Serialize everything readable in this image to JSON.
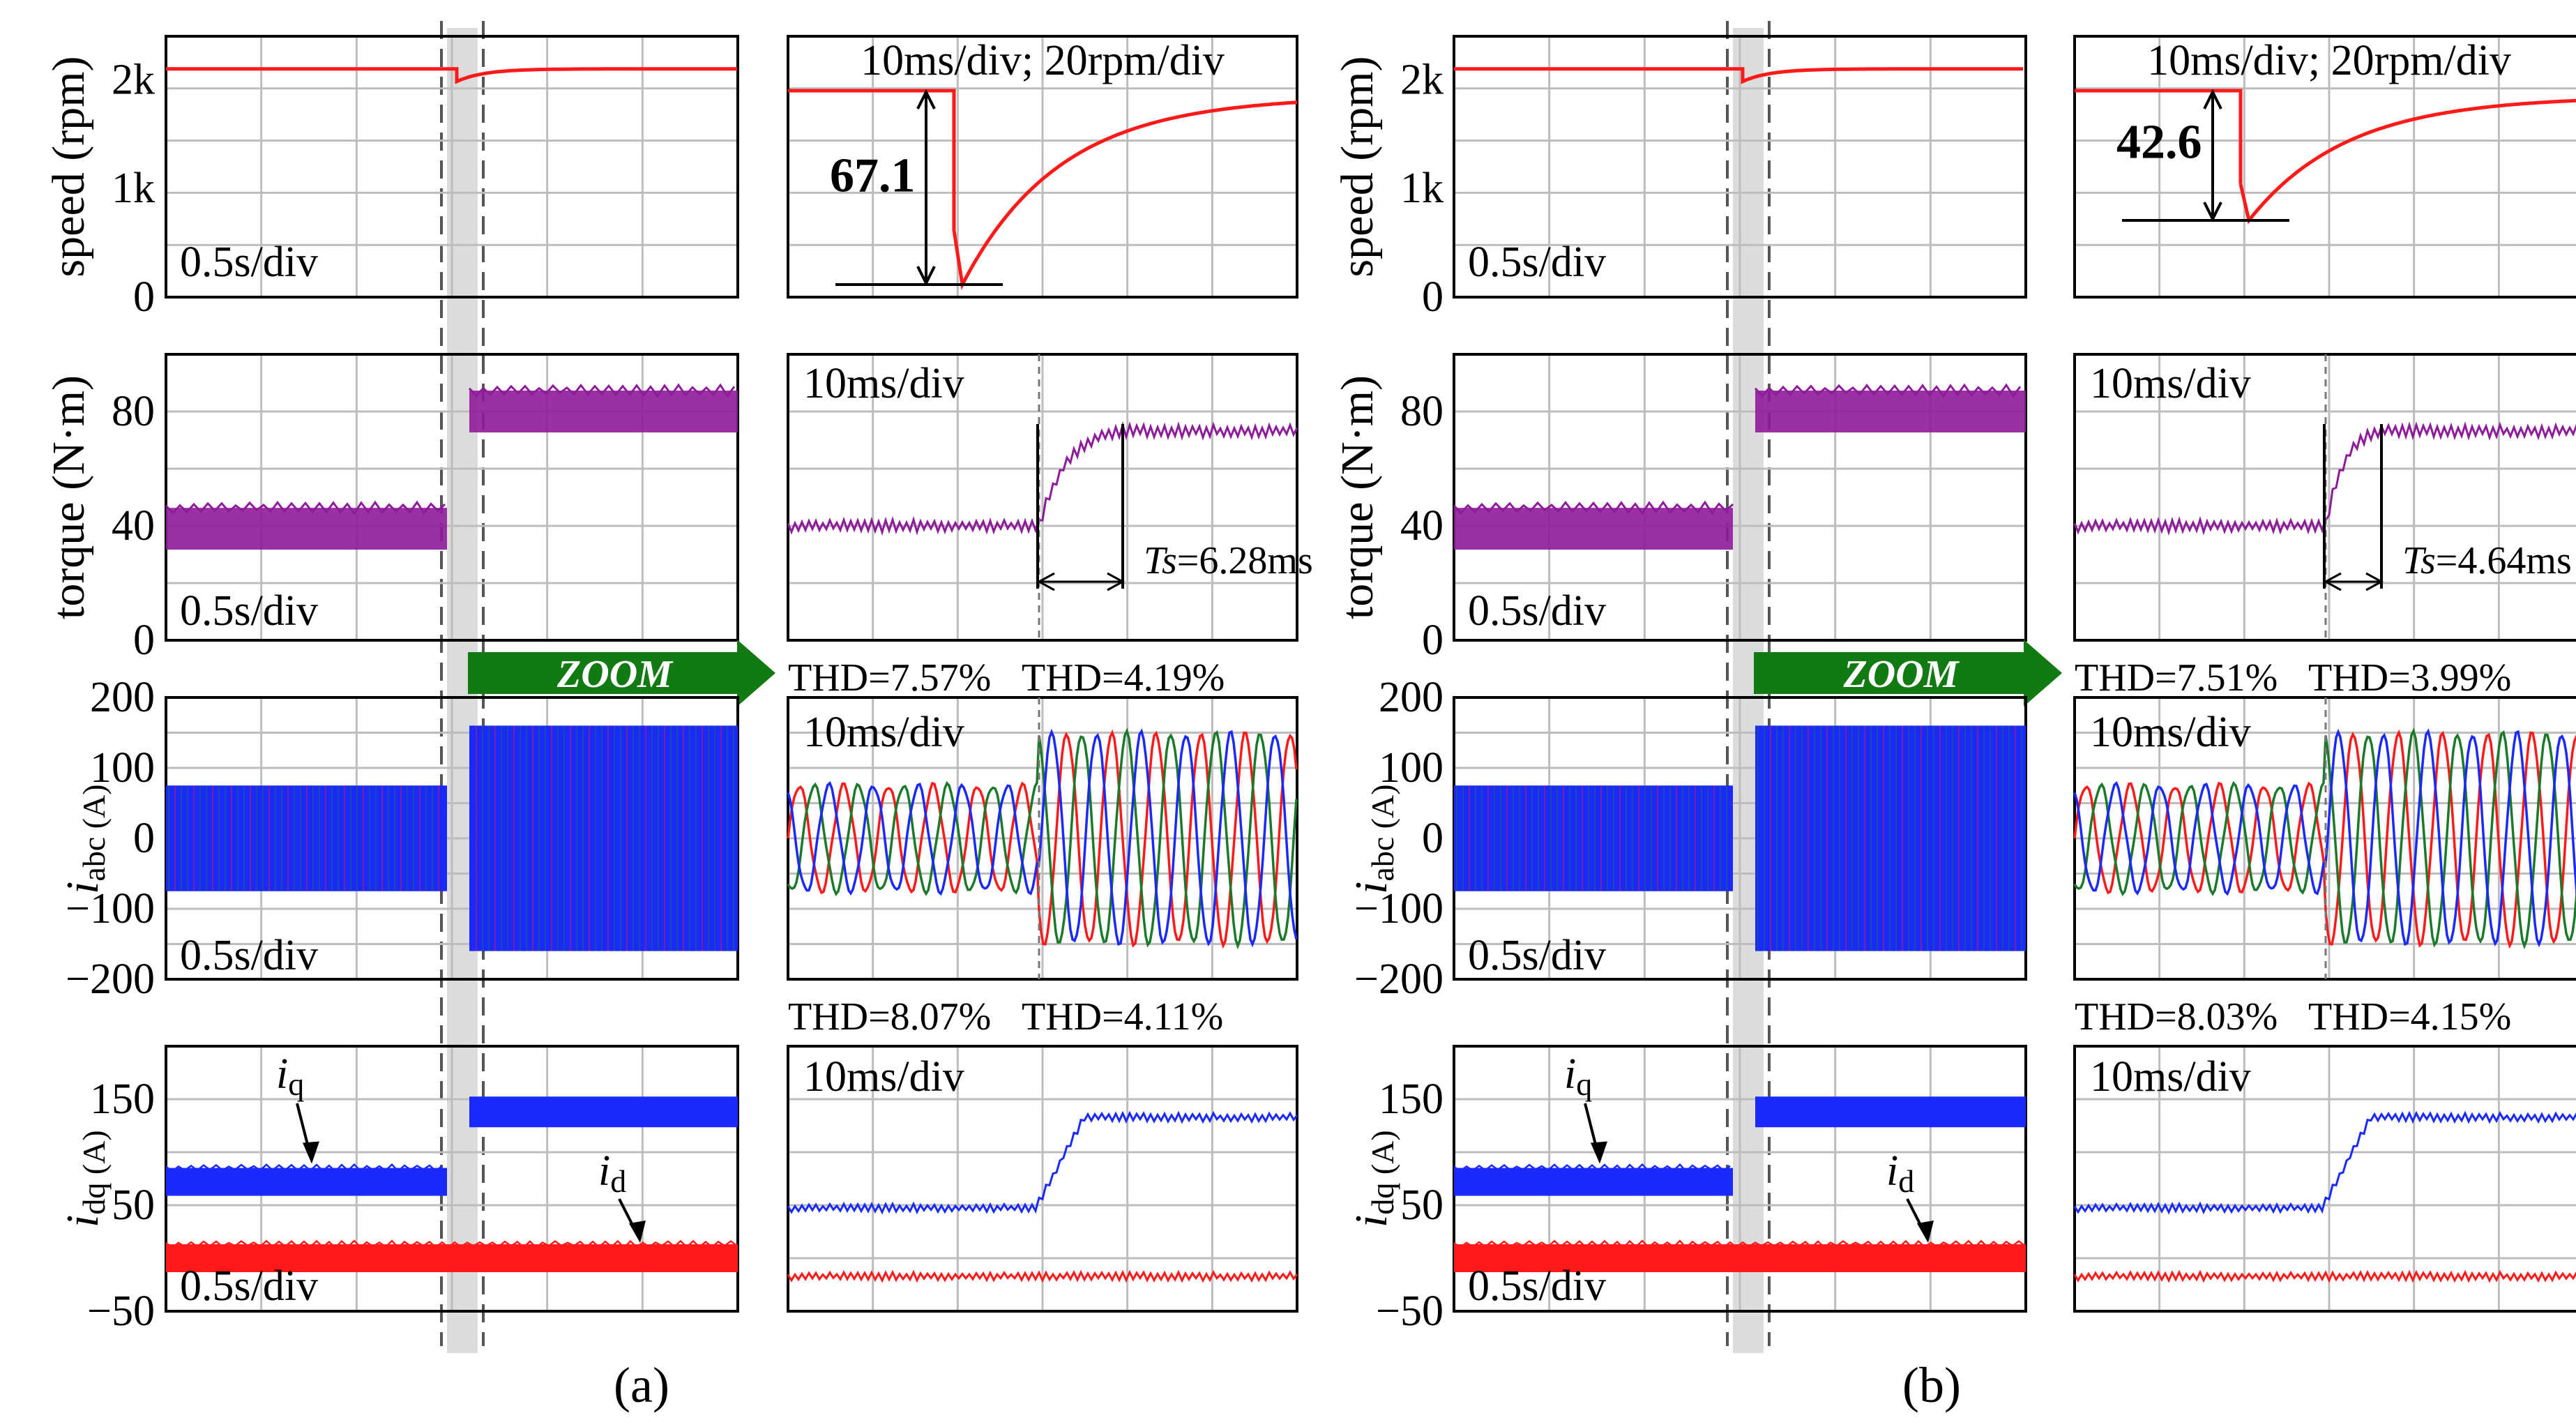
{
  "colors": {
    "speed": "#ff1a1a",
    "torque": "#8e1b9a",
    "phase_a": "#ff1a1a",
    "phase_b": "#1a7a2a",
    "phase_c": "#1a2aff",
    "iq": "#1a2aff",
    "id": "#ff1a1a",
    "zoom_arrow": "#127a12",
    "grid": "#bdbdbd"
  },
  "chart_data": [
    {
      "panel": "a",
      "caption": "(a)",
      "zoom_label": "ZOOM",
      "speed": {
        "type": "line",
        "ylabel": "speed (rpm)",
        "ticks": [
          "2k",
          "1k",
          "0"
        ],
        "ylim": [
          0,
          2400
        ],
        "overview_timebase": "0.5s/div",
        "steady_value": 2100,
        "zoom_timebase": "10ms/div; 20rpm/div",
        "speed_drop_rpm": "67.1",
        "recovery_time_constant_ms": 11
      },
      "torque": {
        "type": "line",
        "ylabel": "torque (N·m)",
        "ticks": [
          "80",
          "40",
          "0"
        ],
        "ylim": [
          0,
          100
        ],
        "overview_timebase": "0.5s/div",
        "zoom_timebase": "10ms/div",
        "before_value": 39,
        "after_value": 80,
        "settling_label": "Ts",
        "settling_value": "=6.28ms",
        "settling_time_ms": 6.28,
        "thd_before": "THD=7.57%",
        "thd_after": "THD=4.19%"
      },
      "current_abc": {
        "type": "line",
        "ylabel_main": "i",
        "ylabel_sub": "abc (A)",
        "ticks": [
          "200",
          "100",
          "0",
          "−100",
          "−200"
        ],
        "ylim": [
          -200,
          200
        ],
        "overview_timebase": "0.5s/div",
        "zoom_timebase": "10ms/div",
        "amplitude_before": 75,
        "amplitude_after": 160,
        "series": [
          "phase a",
          "phase b",
          "phase c"
        ],
        "thd_before": "THD=8.07%",
        "thd_after": "THD=4.11%"
      },
      "current_dq": {
        "type": "line",
        "ylabel_main": "i",
        "ylabel_sub": "dq (A)",
        "ticks": [
          "150",
          "50",
          "−50"
        ],
        "ylim": [
          -50,
          200
        ],
        "overview_timebase": "0.5s/div",
        "zoom_timebase": "10ms/div",
        "iq_label_main": "i",
        "iq_label_sub": "q",
        "id_label_main": "i",
        "id_label_sub": "d",
        "iq_before": 72,
        "iq_after": 138,
        "id_value": 0
      }
    },
    {
      "panel": "b",
      "caption": "(b)",
      "zoom_label": "ZOOM",
      "speed": {
        "type": "line",
        "ylabel": "speed (rpm)",
        "ticks": [
          "2k",
          "1k",
          "0"
        ],
        "ylim": [
          0,
          2400
        ],
        "overview_timebase": "0.5s/div",
        "steady_value": 2100,
        "zoom_timebase": "10ms/div; 20rpm/div",
        "speed_drop_rpm": "42.6",
        "recovery_time_constant_ms": 11
      },
      "torque": {
        "type": "line",
        "ylabel": "torque (N·m)",
        "ticks": [
          "80",
          "40",
          "0"
        ],
        "ylim": [
          0,
          100
        ],
        "overview_timebase": "0.5s/div",
        "zoom_timebase": "10ms/div",
        "before_value": 39,
        "after_value": 80,
        "settling_label": "Ts",
        "settling_value": "=4.64ms",
        "settling_time_ms": 4.64,
        "thd_before": "THD=7.51%",
        "thd_after": "THD=3.99%"
      },
      "current_abc": {
        "type": "line",
        "ylabel_main": "i",
        "ylabel_sub": "abc (A)",
        "ticks": [
          "200",
          "100",
          "0",
          "−100",
          "−200"
        ],
        "ylim": [
          -200,
          200
        ],
        "overview_timebase": "0.5s/div",
        "zoom_timebase": "10ms/div",
        "amplitude_before": 75,
        "amplitude_after": 160,
        "series": [
          "phase a",
          "phase b",
          "phase c"
        ],
        "thd_before": "THD=8.03%",
        "thd_after": "THD=4.15%"
      },
      "current_dq": {
        "type": "line",
        "ylabel_main": "i",
        "ylabel_sub": "dq (A)",
        "ticks": [
          "150",
          "50",
          "−50"
        ],
        "ylim": [
          -50,
          200
        ],
        "overview_timebase": "0.5s/div",
        "zoom_timebase": "10ms/div",
        "iq_label_main": "i",
        "iq_label_sub": "q",
        "id_label_main": "i",
        "id_label_sub": "d",
        "iq_before": 72,
        "iq_after": 138,
        "id_value": 0
      }
    }
  ]
}
